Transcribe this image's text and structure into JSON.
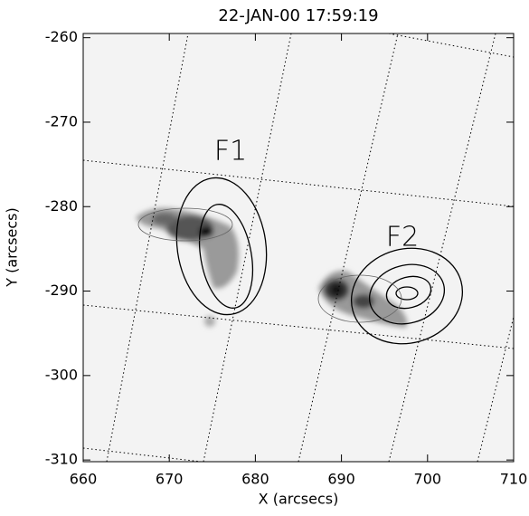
{
  "chart_data": {
    "type": "image",
    "title": "22-JAN-00 17:59:19",
    "x_label": "X (arcsecs)",
    "y_label": "Y (arcsecs)",
    "annotations": [
      "F1",
      "F2"
    ],
    "xlim": [
      660,
      710
    ],
    "xticks": [
      660,
      670,
      680,
      690,
      700,
      710
    ],
    "ylim": [
      -310.2,
      -259.5
    ],
    "yticks": [
      -260,
      -270,
      -280,
      -290,
      -300,
      -310
    ]
  }
}
